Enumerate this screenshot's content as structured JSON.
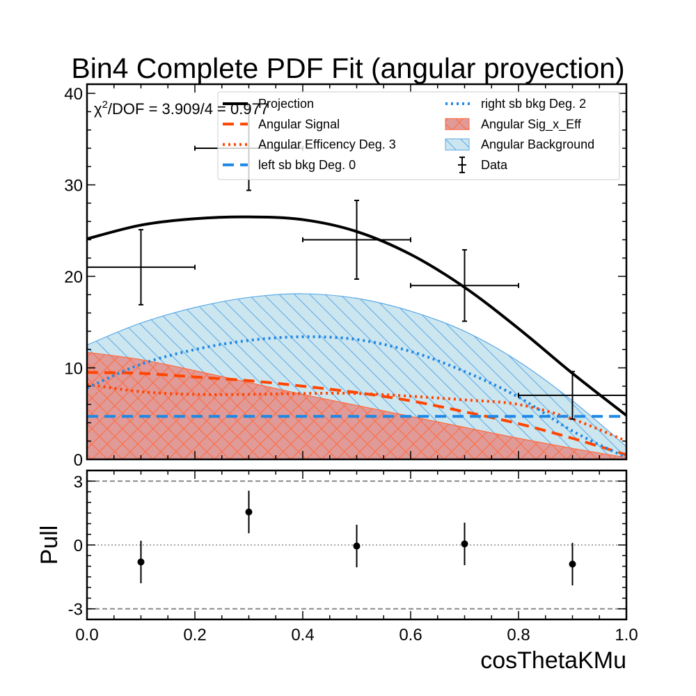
{
  "chart_data": {
    "title": "Bin4 Complete PDF Fit (angular proyection)",
    "top": {
      "type": "line",
      "xlim": [
        0.0,
        1.0
      ],
      "ylim": [
        0,
        41
      ],
      "yticks": [
        0,
        10,
        20,
        30,
        40
      ],
      "annotation": {
        "prefix": "χ",
        "sup": "2",
        "text": "/DOF = 3.909/4 = 0.977"
      },
      "data": {
        "name": "Data",
        "x": [
          0.1,
          0.3,
          0.5,
          0.7,
          0.9
        ],
        "y": [
          21,
          34,
          24,
          19,
          7
        ],
        "xerr": [
          0.1,
          0.1,
          0.1,
          0.1,
          0.1
        ],
        "yerr": [
          4.1,
          4.6,
          4.3,
          3.9,
          2.6
        ]
      },
      "series": [
        {
          "name": "Angular Background",
          "kind": "area",
          "fill": "#cce6f0",
          "edge": "#5aa9e6",
          "x": [
            0.0,
            0.1,
            0.2,
            0.3,
            0.4,
            0.5,
            0.6,
            0.7,
            0.8,
            0.9,
            1.0
          ],
          "y": [
            12.5,
            14.9,
            16.6,
            17.7,
            18.1,
            17.6,
            16.2,
            14.0,
            10.7,
            6.4,
            1.4
          ]
        },
        {
          "name": "Angular Sig_x_Eff",
          "kind": "area",
          "fill": "#e09a98",
          "edge": "#ff6a3d",
          "x": [
            0.0,
            0.1,
            0.2,
            0.3,
            0.4,
            0.5,
            0.6,
            0.7,
            0.8,
            0.9,
            1.0
          ],
          "y": [
            11.7,
            10.9,
            9.7,
            8.4,
            7.1,
            5.9,
            4.7,
            3.5,
            2.3,
            1.2,
            0.2
          ]
        },
        {
          "name": "Projection",
          "kind": "line",
          "color": "#000000",
          "dash": "",
          "width": 4,
          "x": [
            0.0,
            0.1,
            0.2,
            0.3,
            0.4,
            0.5,
            0.6,
            0.7,
            0.8,
            0.9,
            1.0
          ],
          "y": [
            24.1,
            25.6,
            26.3,
            26.5,
            26.2,
            24.9,
            22.4,
            18.8,
            14.3,
            9.4,
            4.8
          ]
        },
        {
          "name": "Angular Signal",
          "kind": "line",
          "color": "#ff4500",
          "dash": "16,9",
          "width": 4,
          "x": [
            0.0,
            0.1,
            0.2,
            0.3,
            0.4,
            0.5,
            0.6,
            0.7,
            0.8,
            0.9,
            1.0
          ],
          "y": [
            9.5,
            9.4,
            9.0,
            8.6,
            8.0,
            7.3,
            6.4,
            5.2,
            3.9,
            2.3,
            0.5
          ]
        },
        {
          "name": "Angular Efficency Deg. 3",
          "kind": "line",
          "color": "#ff4500",
          "dash": "3,5",
          "width": 4,
          "x": [
            0.0,
            0.1,
            0.2,
            0.3,
            0.4,
            0.5,
            0.6,
            0.7,
            0.8,
            0.9,
            1.0
          ],
          "y": [
            8.2,
            7.4,
            7.1,
            7.1,
            7.2,
            7.2,
            6.9,
            6.5,
            6.0,
            4.4,
            2.0
          ]
        },
        {
          "name": "left sb bkg Deg. 0",
          "kind": "line",
          "color": "#1e88e5",
          "dash": "16,9",
          "width": 4,
          "x": [
            0.0,
            1.0
          ],
          "y": [
            4.7,
            4.7
          ]
        },
        {
          "name": "right sb bkg Deg. 2",
          "kind": "line",
          "color": "#1e88e5",
          "dash": "3,5",
          "width": 4,
          "x": [
            0.0,
            0.1,
            0.2,
            0.3,
            0.4,
            0.5,
            0.6,
            0.7,
            0.8,
            0.9,
            1.0
          ],
          "y": [
            7.8,
            10.4,
            12.0,
            13.0,
            13.4,
            13.1,
            11.8,
            9.6,
            6.8,
            3.1,
            0.2
          ]
        }
      ],
      "legend": {
        "placement": "top-right",
        "left_column": [
          "Projection",
          "Angular Signal",
          "Angular Efficency Deg. 3",
          "left sb bkg Deg. 0"
        ],
        "right_column": [
          "right sb bkg Deg. 2",
          "Angular Sig_x_Eff",
          "Angular Background",
          "Data"
        ]
      }
    },
    "bottom": {
      "type": "scatter",
      "ylabel": "Pull",
      "xlabel": "cosThetaKMu",
      "xlim": [
        0.0,
        1.0
      ],
      "ylim": [
        -3.5,
        3.5
      ],
      "yticks": [
        -3,
        0,
        3
      ],
      "ytick_labels": [
        "-3",
        "0",
        "3"
      ],
      "xticks": [
        0.0,
        0.2,
        0.4,
        0.6,
        0.8,
        1.0
      ],
      "xtick_labels": [
        "0.0",
        "0.2",
        "0.4",
        "0.6",
        "0.8",
        "1.0"
      ],
      "reference_lines": [
        -3,
        0,
        3
      ],
      "x": [
        0.1,
        0.3,
        0.5,
        0.7,
        0.9
      ],
      "y": [
        -0.8,
        1.55,
        -0.05,
        0.05,
        -0.9
      ],
      "yerr": [
        1.0,
        1.0,
        1.0,
        1.0,
        1.0
      ]
    }
  }
}
